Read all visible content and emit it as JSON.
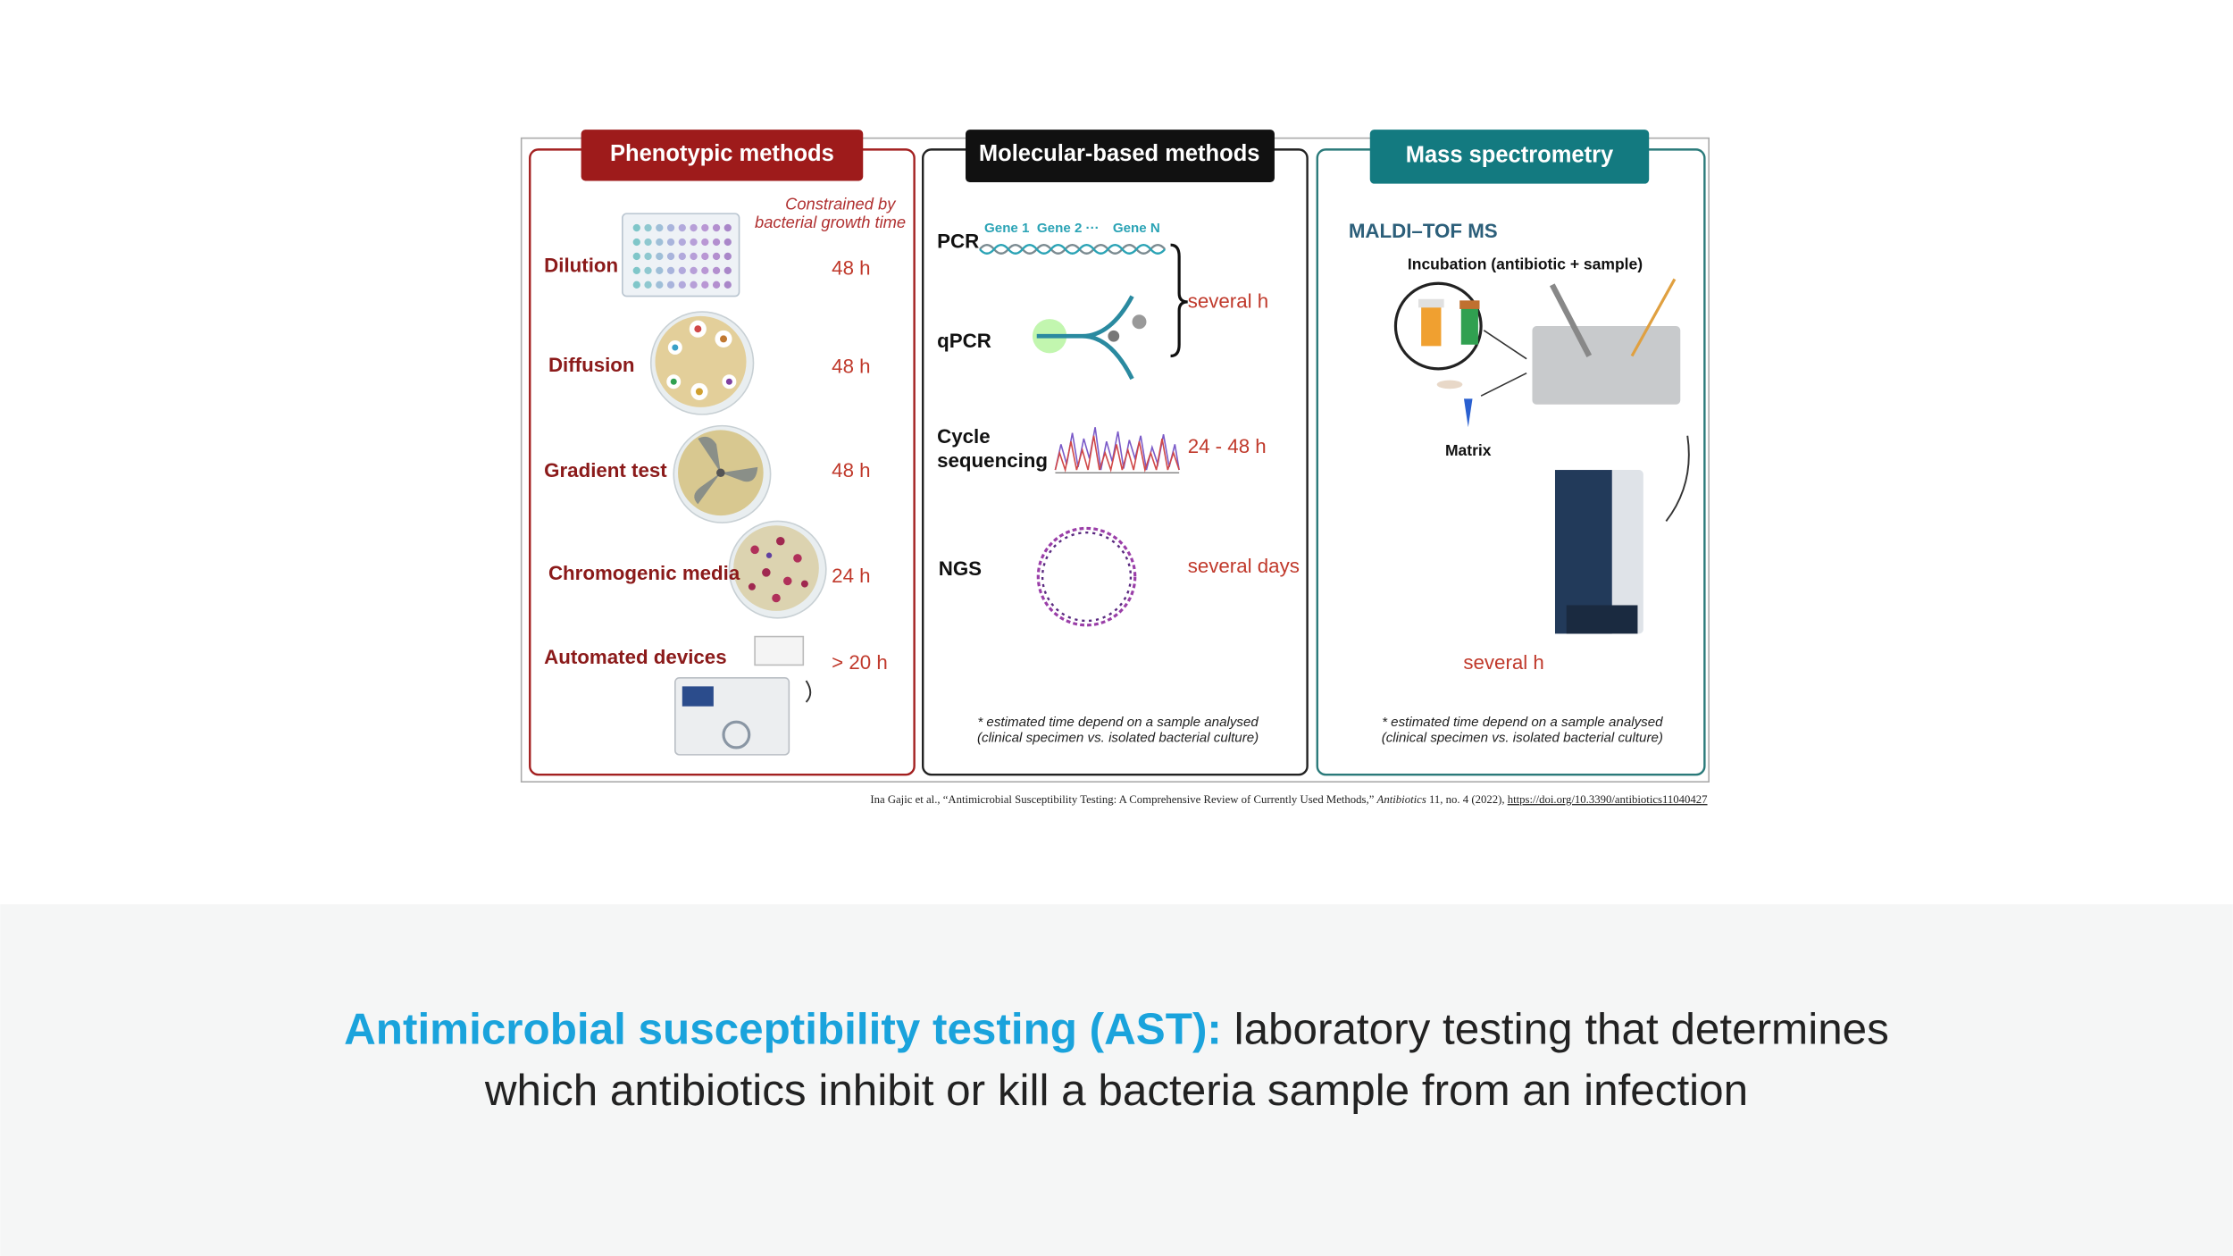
{
  "figure": {
    "panels": [
      {
        "title": "Phenotypic methods",
        "note": [
          "Constrained by",
          "bacterial growth time"
        ],
        "rows": [
          {
            "label": "Dilution",
            "time": "48 h"
          },
          {
            "label": "Diffusion",
            "time": "48 h"
          },
          {
            "label": "Gradient test",
            "time": "48 h"
          },
          {
            "label": "Chromogenic media",
            "time": "24 h"
          },
          {
            "label": "Automated devices",
            "time": "> 20 h"
          }
        ]
      },
      {
        "title": "Molecular-based methods",
        "genes": [
          "Gene 1",
          "Gene 2 ···",
          "Gene N"
        ],
        "rows": [
          {
            "labels": [
              "PCR",
              "qPCR"
            ],
            "time": "several h"
          },
          {
            "labels": [
              "Cycle",
              "sequencing"
            ],
            "time": "24 - 48 h"
          },
          {
            "labels": [
              "NGS"
            ],
            "time": "several days"
          }
        ],
        "footnote": [
          "* estimated time depend on a sample analysed",
          "(clinical specimen vs. isolated bacterial culture)"
        ]
      },
      {
        "title": "Mass spectrometry",
        "subtitle": "MALDI–TOF MS",
        "step": "Incubation (antibiotic + sample)",
        "matrix": "Matrix",
        "time": "several h",
        "footnote": [
          "* estimated time depend on a sample analysed",
          "(clinical specimen vs. isolated bacterial culture)"
        ]
      }
    ],
    "citation": {
      "authors": "Ina Gajic et al., “Antimicrobial Susceptibility Testing: A Comprehensive Review of Currently Used Methods,”",
      "journal": "Antibiotics",
      "details": "11, no. 4 (2022),",
      "link": "https://doi.org/10.3390/antibiotics11040427"
    }
  },
  "caption": {
    "term": "Antimicrobial susceptibility testing (AST):",
    "lines": [
      "laboratory testing that determines",
      "which antibiotics inhibit or kill a bacteria sample from an infection"
    ]
  }
}
